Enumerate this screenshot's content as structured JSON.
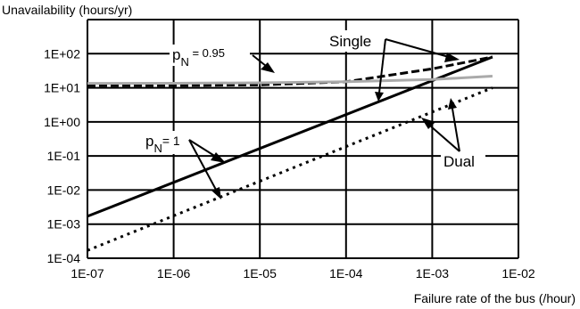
{
  "chart_data": {
    "type": "line",
    "ylabel": "Unavailability (hours/yr)",
    "xlabel": "Failure rate of the bus (/hour)",
    "x_scale": "log",
    "y_scale": "log",
    "xlim": [
      1e-07,
      0.01
    ],
    "ylim": [
      0.0001,
      1000.0
    ],
    "x_ticks": [
      "1E-07",
      "1E-06",
      "1E-05",
      "1E-04",
      "1E-03",
      "1E-02"
    ],
    "y_ticks": [
      "1E-04",
      "1E-03",
      "1E-02",
      "1E-01",
      "1E+00",
      "1E+01",
      "1E+02"
    ],
    "grid": true,
    "series": [
      {
        "name": "Single",
        "p_case": "pN = 1",
        "style": "solid",
        "color": "#000000",
        "x": [
          1e-07,
          0.005
        ],
        "y": [
          0.0017,
          80
        ]
      },
      {
        "name": "Dual",
        "p_case": "pN = 1",
        "style": "dotted",
        "color": "#000000",
        "x": [
          1e-07,
          0.005
        ],
        "y": [
          0.00017,
          10
        ]
      },
      {
        "name": "Single",
        "p_case": "pN = 0.95",
        "style": "dashed",
        "color": "#000000",
        "x": [
          1e-07,
          1e-06,
          1e-05,
          0.0001,
          0.001,
          0.005
        ],
        "y": [
          11.5,
          11.6,
          12.2,
          15,
          36,
          80
        ]
      },
      {
        "name": "Dual",
        "p_case": "pN = 0.95",
        "style": "solid",
        "color": "#aaaaaa",
        "x": [
          1e-07,
          1e-06,
          1e-05,
          0.0001,
          0.001,
          0.005
        ],
        "y": [
          13.5,
          13.6,
          14,
          15,
          17.5,
          22
        ]
      }
    ],
    "annotations": {
      "single": "Single",
      "dual": "Dual",
      "pn095_p": "p",
      "pn095_sub": "N",
      "pn095_val": " = 0.95",
      "pn1_p": "p",
      "pn1_sub": "N",
      "pn1_val": "= 1"
    }
  }
}
